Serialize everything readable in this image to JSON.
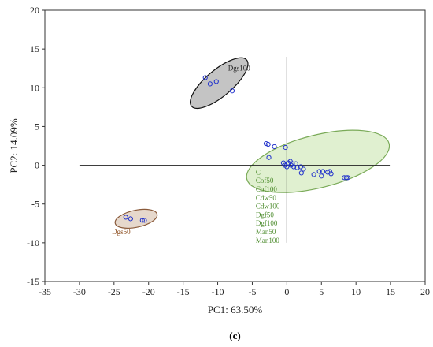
{
  "chart_data": {
    "type": "scatter",
    "title": "",
    "xlabel": "PC1: 63.50%",
    "ylabel": "PC2: 14.09%",
    "caption": "(c)",
    "xlim": [
      -35,
      20
    ],
    "ylim": [
      -15,
      20
    ],
    "xticks": [
      "-35",
      "-30",
      "-25",
      "-20",
      "-15",
      "-10",
      "-5",
      "0",
      "5",
      "10",
      "15",
      "20"
    ],
    "yticks": [
      "-15",
      "-10",
      "-5",
      "0",
      "5",
      "10",
      "15",
      "20"
    ],
    "reference_lines": {
      "horizontal": {
        "y": 0,
        "x_range": [
          -30,
          15
        ]
      },
      "vertical": {
        "x": 0,
        "y_range": [
          -10,
          14
        ]
      }
    },
    "marker_color": "#2233cc",
    "groups": [
      {
        "name": "Dgs100",
        "labels": [
          "Dgs100"
        ],
        "label_pos": [
          -8.5,
          12.2
        ],
        "label_color": "#222222",
        "ellipse": {
          "cx": -9.8,
          "cy": 10.6,
          "rx": 5.2,
          "ry": 1.7,
          "angle": -40
        },
        "fill": "#c4c4c4",
        "stroke": "#111111",
        "points": [
          [
            -11.8,
            11.3
          ],
          [
            -11.1,
            10.5
          ],
          [
            -10.2,
            10.8
          ],
          [
            -7.9,
            9.6
          ]
        ]
      },
      {
        "name": "Dgs50",
        "labels": [
          "Dgs50"
        ],
        "label_pos": [
          -25.3,
          -8.9
        ],
        "label_color": "#8a4a1a",
        "ellipse": {
          "cx": -21.8,
          "cy": -6.9,
          "rx": 3.1,
          "ry": 1.1,
          "angle": -12
        },
        "fill": "#e6d8cc",
        "stroke": "#8a5a3a",
        "points": [
          [
            -23.3,
            -6.7
          ],
          [
            -22.6,
            -6.9
          ],
          [
            -20.9,
            -7.1
          ],
          [
            -20.6,
            -7.1
          ]
        ]
      },
      {
        "name": "C, Cof50, Cof100, Cdw50, Cdw100, Dgf50, Dgf100, Man50, Man100",
        "labels": [
          "C",
          "Cof50",
          "Cof100",
          "Cdw50",
          "Cdw100",
          "Dgf50",
          "Dgf100",
          "Man50",
          "Man100"
        ],
        "label_pos": [
          -4.5,
          -1.2
        ],
        "label_line_step": 1.1,
        "label_color": "#4a8a2a",
        "ellipse": {
          "cx": 4.5,
          "cy": 0.5,
          "rx": 10.6,
          "ry": 3.4,
          "angle": -14
        },
        "fill": "#e0f0d0",
        "stroke": "#7aaa58",
        "points": [
          [
            -3.0,
            2.8
          ],
          [
            -2.7,
            2.7
          ],
          [
            -1.8,
            2.4
          ],
          [
            -0.2,
            2.3
          ],
          [
            -2.6,
            1.0
          ],
          [
            -0.5,
            0.3
          ],
          [
            -0.3,
            0.0
          ],
          [
            0.0,
            -0.2
          ],
          [
            0.2,
            0.3
          ],
          [
            0.5,
            0.5
          ],
          [
            0.6,
            0.0
          ],
          [
            0.8,
            0.2
          ],
          [
            1.0,
            -0.2
          ],
          [
            1.3,
            0.2
          ],
          [
            1.5,
            -0.3
          ],
          [
            2.0,
            -0.2
          ],
          [
            2.4,
            -0.5
          ],
          [
            2.1,
            -1.0
          ],
          [
            3.9,
            -1.2
          ],
          [
            4.7,
            -0.8
          ],
          [
            5.2,
            -0.8
          ],
          [
            5.0,
            -1.4
          ],
          [
            5.9,
            -0.9
          ],
          [
            6.2,
            -0.8
          ],
          [
            6.4,
            -1.1
          ],
          [
            8.3,
            -1.6
          ],
          [
            8.6,
            -1.6
          ],
          [
            8.8,
            -1.6
          ]
        ]
      }
    ]
  }
}
